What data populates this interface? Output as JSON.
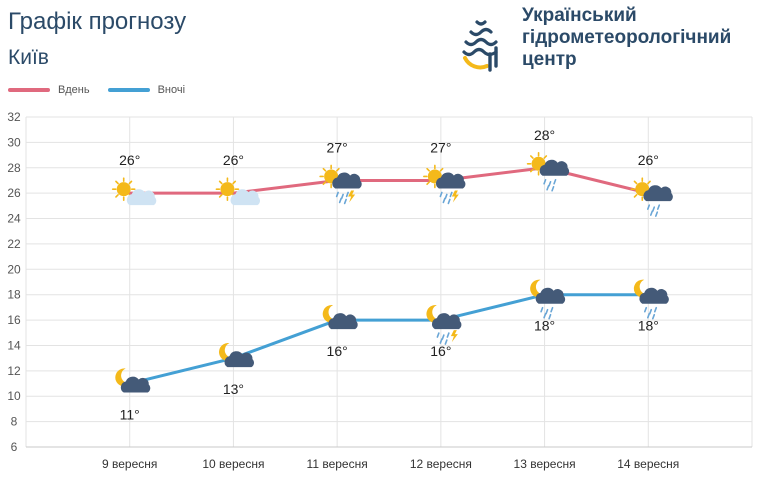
{
  "header": {
    "title": "Графік прогнозу",
    "city": "Київ",
    "org_line1": "Український",
    "org_line2": "гідрометеорологічний",
    "org_line3": "центр"
  },
  "legend": {
    "day_label": "Вдень",
    "night_label": "Вночі"
  },
  "colors": {
    "day": "#e0697e",
    "night": "#44a0d4",
    "text": "#2b4a68",
    "grid": "#e3e3e3",
    "sun": "#f4b91a",
    "cloud_dark": "#445a78",
    "cloud_light": "#cfe3f3",
    "rain": "#6aa6d6"
  },
  "chart_data": {
    "type": "line",
    "categories": [
      "9 вересня",
      "10 вересня",
      "11 вересня",
      "12 вересня",
      "13 вересня",
      "14 вересня"
    ],
    "series": [
      {
        "name": "Вдень",
        "values": [
          26,
          26,
          27,
          27,
          28,
          26
        ],
        "labels": [
          "26°",
          "26°",
          "27°",
          "27°",
          "28°",
          "26°"
        ],
        "icons": [
          "sun-cloud-icon",
          "sun-cloud-icon",
          "sun-cloud-thunder-rain-icon",
          "sun-cloud-thunder-rain-icon",
          "sun-cloud-rain-icon",
          "sun-cloud-rain-icon"
        ]
      },
      {
        "name": "Вночі",
        "values": [
          11,
          13,
          16,
          16,
          18,
          18
        ],
        "labels": [
          "11°",
          "13°",
          "16°",
          "16°",
          "18°",
          "18°"
        ],
        "icons": [
          "moon-cloud-icon",
          "moon-cloud-icon",
          "moon-cloud-icon",
          "moon-cloud-thunder-rain-icon",
          "moon-cloud-rain-icon",
          "moon-cloud-rain-icon"
        ]
      }
    ],
    "yticks": [
      6,
      8,
      10,
      12,
      14,
      16,
      18,
      20,
      22,
      24,
      26,
      28,
      30,
      32
    ],
    "ylim": [
      6,
      32
    ],
    "grid": true,
    "legend_position": "top-left"
  }
}
